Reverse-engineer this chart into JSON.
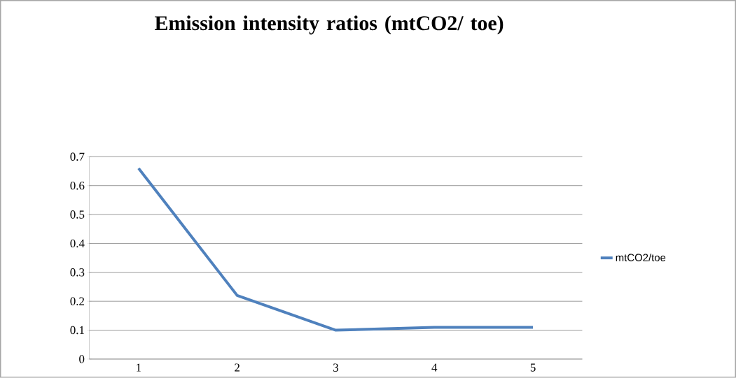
{
  "chart_data": {
    "type": "line",
    "title": "Emission intensity ratios (mtCO2/ toe)",
    "categories": [
      "1",
      "2",
      "3",
      "4",
      "5"
    ],
    "series": [
      {
        "name": "mtCO2/toe",
        "color": "#4f81bd",
        "values": [
          0.66,
          0.22,
          0.1,
          0.11,
          0.11
        ]
      }
    ],
    "ylim": [
      0,
      0.7
    ],
    "yticks": [
      0,
      0.1,
      0.2,
      0.3,
      0.4,
      0.5,
      0.6,
      0.7
    ],
    "grid": "y",
    "legend": "right",
    "marker": "none",
    "line_style": "solid"
  }
}
